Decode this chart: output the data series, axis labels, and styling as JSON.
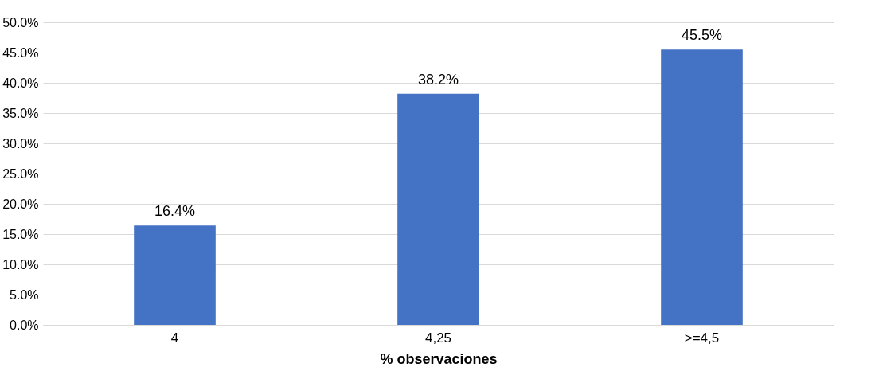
{
  "chart_data": {
    "type": "bar",
    "xlabel": "% observaciones",
    "categories": [
      "4",
      "4,25",
      ">=4,5"
    ],
    "values": [
      16.4,
      38.2,
      45.5
    ],
    "color": "#4472c4",
    "value_labels": [
      "16.4%",
      "38.2%",
      "45.5%"
    ],
    "ylim": [
      0,
      50
    ],
    "yticks": [
      {
        "value": 0,
        "label": "0.0%"
      },
      {
        "value": 5,
        "label": "5.0%"
      },
      {
        "value": 10,
        "label": "10.0%"
      },
      {
        "value": 15,
        "label": "15.0%"
      },
      {
        "value": 20,
        "label": "20.0%"
      },
      {
        "value": 25,
        "label": "25.0%"
      },
      {
        "value": 30,
        "label": "30.0%"
      },
      {
        "value": 35,
        "label": "35.0%"
      },
      {
        "value": 40,
        "label": "40.0%"
      },
      {
        "value": 45,
        "label": "45.0%"
      },
      {
        "value": 50,
        "label": "50.0%"
      }
    ],
    "grid": "y"
  }
}
